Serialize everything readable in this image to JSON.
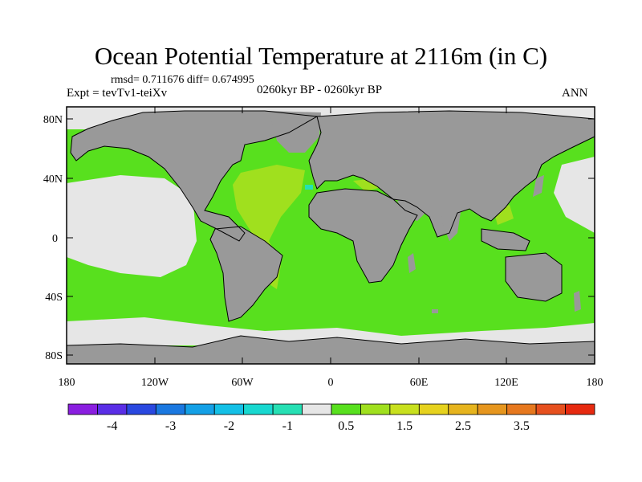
{
  "title": "Ocean Potential Temperature at 2116m (in C)",
  "stats": "rmsd= 0.711676 diff= 0.674995",
  "experiment": "Expt = tevTv1-teiXv",
  "period": "0260kyr BP - 0260kyr BP",
  "season": "ANN",
  "lat_labels": [
    "80N",
    "40N",
    "0",
    "40S",
    "80S"
  ],
  "lon_labels": [
    "180",
    "120W",
    "60W",
    "0",
    "60E",
    "120E",
    "180"
  ],
  "colorbar": {
    "colors": [
      "#8a1ee0",
      "#5a2ee6",
      "#2a48e0",
      "#1a78e0",
      "#14a0e6",
      "#14c0e6",
      "#18d8d0",
      "#26e0b4",
      "#e6e6e6",
      "#58e01e",
      "#a0e01e",
      "#c8e01e",
      "#e6d21e",
      "#e6b41e",
      "#e6961e",
      "#e6781e",
      "#e6501e",
      "#e62a10"
    ],
    "labels": [
      "-4",
      "-3",
      "-2",
      "-1",
      "0.5",
      "1.5",
      "2.5",
      "3.5"
    ]
  },
  "map_colors": {
    "land": "#999999",
    "ocean_main": "#58e01e",
    "ocean_neutral": "#e6e6e6",
    "ocean_warm": "#a0e01e",
    "ocean_cold": "#26e0b4"
  }
}
